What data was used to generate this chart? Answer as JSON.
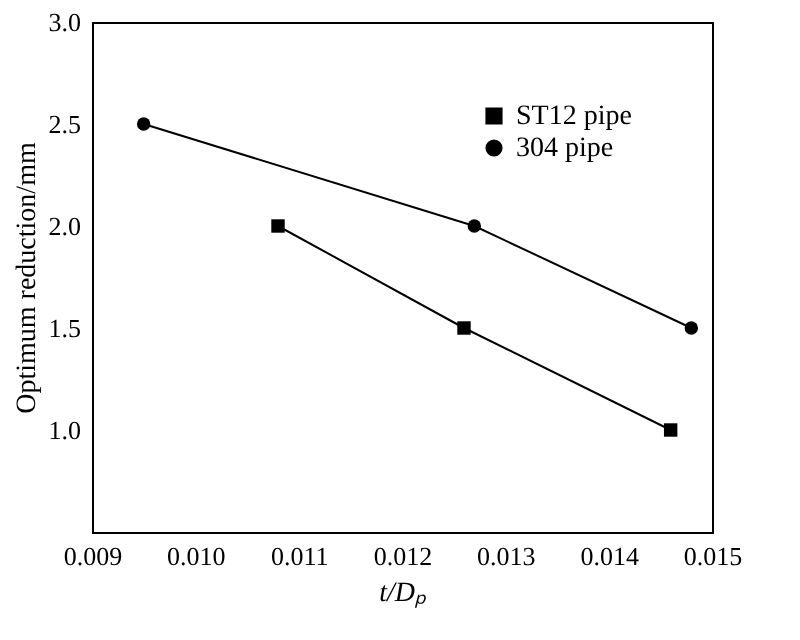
{
  "chart_data": {
    "type": "line",
    "xlabel": "t/Dₚ",
    "ylabel": "Optimum reduction/mm",
    "series": [
      {
        "name": "ST12 pipe",
        "color": "#000000",
        "marker": "square",
        "x": [
          0.0108,
          0.0126,
          0.0146
        ],
        "values": [
          2.0,
          1.5,
          1.0
        ]
      },
      {
        "name": "304 pipe",
        "color": "#000000",
        "marker": "circle",
        "x": [
          0.0095,
          0.0127,
          0.0148
        ],
        "values": [
          2.5,
          2.0,
          1.5
        ]
      }
    ],
    "xlim": [
      0.009,
      0.015
    ],
    "xticks": [
      0.009,
      {
        "value": 0.01,
        "label": "0.010"
      },
      0.011,
      0.012,
      0.013,
      0.014,
      0.015
    ],
    "ylim": [
      0.5,
      3.0
    ],
    "yticks": [
      {
        "value": 1.0,
        "label": "1.0"
      },
      {
        "value": 1.5,
        "label": "1.5"
      },
      {
        "value": 2.0,
        "label": "2.0"
      },
      {
        "value": 2.5,
        "label": "2.5"
      },
      {
        "value": 3.0,
        "label": "3.0"
      }
    ],
    "grid": false,
    "legend": "top right",
    "line_style": "solid"
  }
}
